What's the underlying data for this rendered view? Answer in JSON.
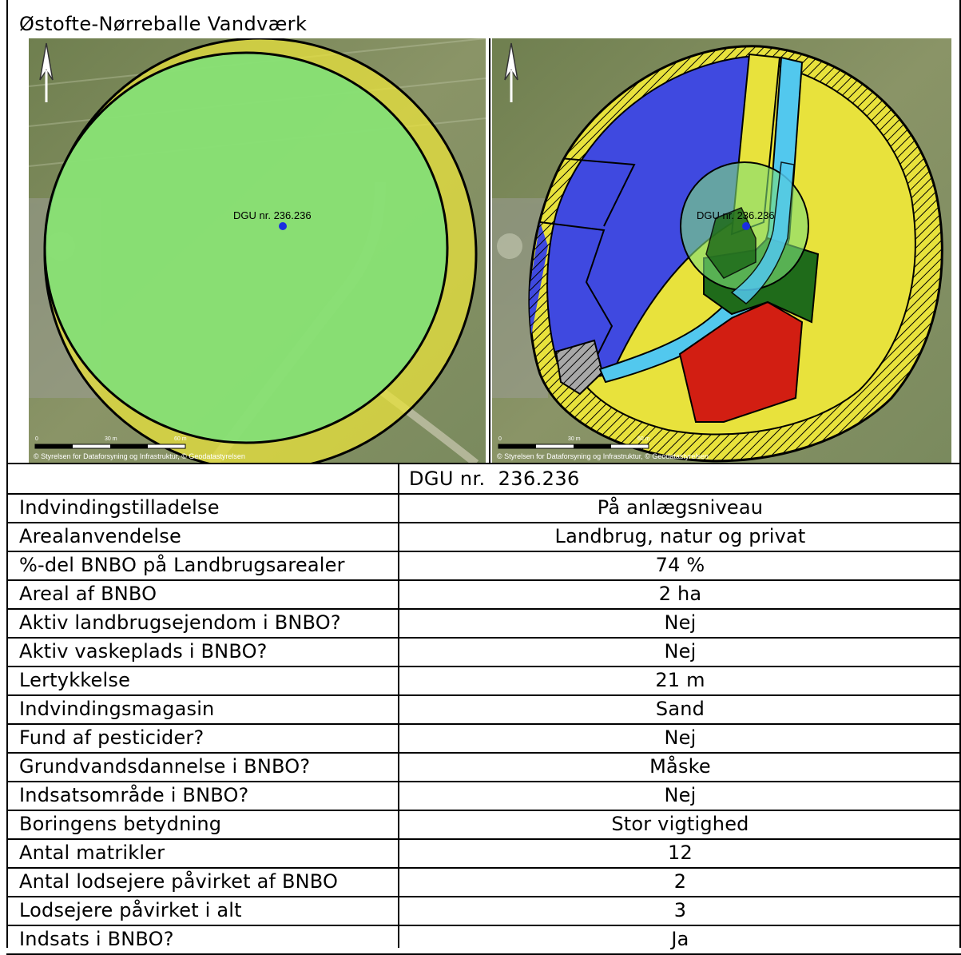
{
  "page_title": "Østofte-Nørreballe Vandværk",
  "maps": {
    "left": {
      "well_label": "DGU nr. 236.236",
      "scale_ticks": [
        "0",
        "30 m",
        "60 m"
      ],
      "attribution": "© Styrelsen for Dataforsyning og Infrastruktur, © Geodatastyrelsen"
    },
    "right": {
      "well_label": "DGU nr. 236.236",
      "scale_ticks": [
        "0",
        "30 m",
        "60 m"
      ],
      "attribution": "© Styrelsen for Dataforsyning og Infrastruktur, © Geodatastyrelsen"
    },
    "icons": [
      "north-arrow-icon",
      "well-point-icon"
    ],
    "colors": {
      "bnbo_green": "#7ee07a",
      "outer_yellow": "#e8e23c",
      "blue_area": "#3f49e0",
      "light_blue_road": "#52c8ee",
      "dark_green": "#1f6b1a",
      "red_area": "#d21e12",
      "hatched_grey": "#9a9a9a",
      "well_point": "#1b2ee0"
    }
  },
  "table": {
    "header_value": "DGU nr.  236.236",
    "rows": [
      {
        "label": "Indvindingstilladelse",
        "value": "På anlægsniveau"
      },
      {
        "label": "Arealanvendelse",
        "value": "Landbrug, natur og privat"
      },
      {
        "label": "%-del BNBO på Landbrugsarealer",
        "value": "74 %"
      },
      {
        "label": "Areal af BNBO",
        "value": "2 ha"
      },
      {
        "label": "Aktiv landbrugsejendom i BNBO?",
        "value": "Nej"
      },
      {
        "label": "Aktiv vaskeplads i BNBO?",
        "value": "Nej"
      },
      {
        "label": "Lertykkelse",
        "value": "21 m"
      },
      {
        "label": "Indvindingsmagasin",
        "value": "Sand"
      },
      {
        "label": "Fund af pesticider?",
        "value": "Nej"
      },
      {
        "label": "Grundvandsdannelse i BNBO?",
        "value": "Måske"
      },
      {
        "label": "Indsatsområde i BNBO?",
        "value": "Nej"
      },
      {
        "label": "Boringens betydning",
        "value": "Stor vigtighed"
      },
      {
        "label": "Antal matrikler",
        "value": "12"
      },
      {
        "label": "Antal lodsejere påvirket af BNBO",
        "value": "2"
      },
      {
        "label": "Lodsejere påvirket i alt",
        "value": "3"
      },
      {
        "label": "Indsats i BNBO?",
        "value": "Ja"
      }
    ]
  }
}
